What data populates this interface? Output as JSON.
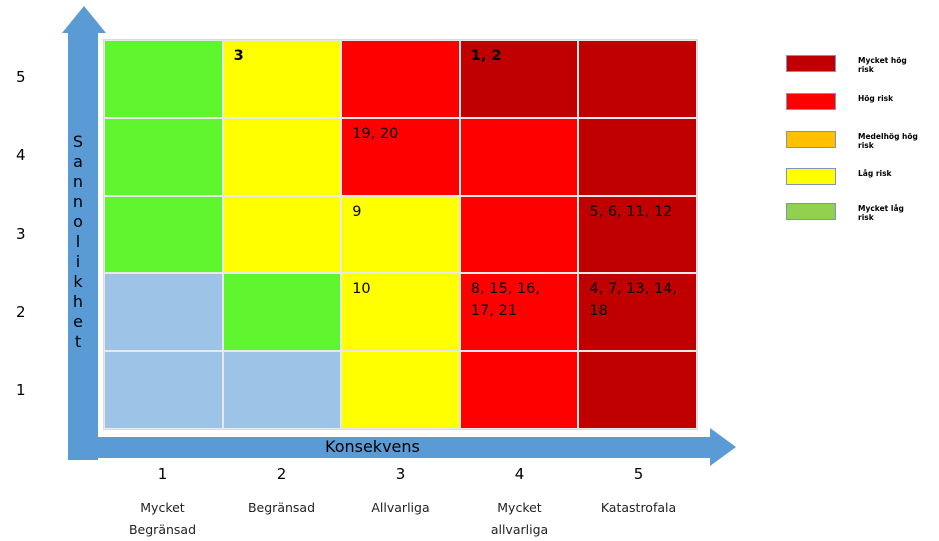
{
  "chart_data": {
    "type": "heatmap",
    "xaxis": {
      "title": "Konsekvens",
      "levels": [
        {
          "num": "1",
          "label": "Mycket Begränsad"
        },
        {
          "num": "2",
          "label": "Begränsad"
        },
        {
          "num": "3",
          "label": "Allvarliga"
        },
        {
          "num": "4",
          "label": "Mycket allvarliga"
        },
        {
          "num": "5",
          "label": "Katastrofala"
        }
      ]
    },
    "yaxis": {
      "title": "Sannolikhet",
      "levels": [
        "5",
        "4",
        "3",
        "2",
        "1"
      ]
    },
    "rows": [
      {
        "likelihood": "5",
        "cells": [
          {
            "color": "#5ef52f",
            "text": ""
          },
          {
            "color": "#ffff00",
            "text": "3",
            "bold": true
          },
          {
            "color": "#ff0000",
            "text": ""
          },
          {
            "color": "#c00000",
            "text": "1, 2",
            "bold": true
          },
          {
            "color": "#c00000",
            "text": ""
          }
        ]
      },
      {
        "likelihood": "4",
        "cells": [
          {
            "color": "#5ef52f",
            "text": ""
          },
          {
            "color": "#ffff00",
            "text": ""
          },
          {
            "color": "#ff0000",
            "text": "19, 20"
          },
          {
            "color": "#ff0000",
            "text": ""
          },
          {
            "color": "#c00000",
            "text": ""
          }
        ]
      },
      {
        "likelihood": "3",
        "cells": [
          {
            "color": "#5ef52f",
            "text": ""
          },
          {
            "color": "#ffff00",
            "text": ""
          },
          {
            "color": "#ffff00",
            "text": "9"
          },
          {
            "color": "#ff0000",
            "text": ""
          },
          {
            "color": "#c00000",
            "text": "5, 6, 11, 12"
          }
        ]
      },
      {
        "likelihood": "2",
        "cells": [
          {
            "color": "#9dc3e6",
            "text": ""
          },
          {
            "color": "#5ef52f",
            "text": ""
          },
          {
            "color": "#ffff00",
            "text": "10"
          },
          {
            "color": "#ff0000",
            "text": "8, 15, 16, 17, 21"
          },
          {
            "color": "#c00000",
            "text": "4, 7, 13, 14, 18"
          }
        ]
      },
      {
        "likelihood": "1",
        "cells": [
          {
            "color": "#9dc3e6",
            "text": ""
          },
          {
            "color": "#9dc3e6",
            "text": ""
          },
          {
            "color": "#ffff00",
            "text": ""
          },
          {
            "color": "#ff0000",
            "text": ""
          },
          {
            "color": "#c00000",
            "text": ""
          }
        ]
      }
    ],
    "legend": [
      {
        "label": "Mycket hög risk",
        "color": "#c00000"
      },
      {
        "label": "Hög risk",
        "color": "#ff0000"
      },
      {
        "label": "Medelhög hög risk",
        "color": "#ffc000"
      },
      {
        "label": "Låg risk",
        "color": "#ffff00"
      },
      {
        "label": "Mycket låg risk",
        "color": "#92d050"
      }
    ],
    "arrow_color": "#5b9bd5"
  }
}
